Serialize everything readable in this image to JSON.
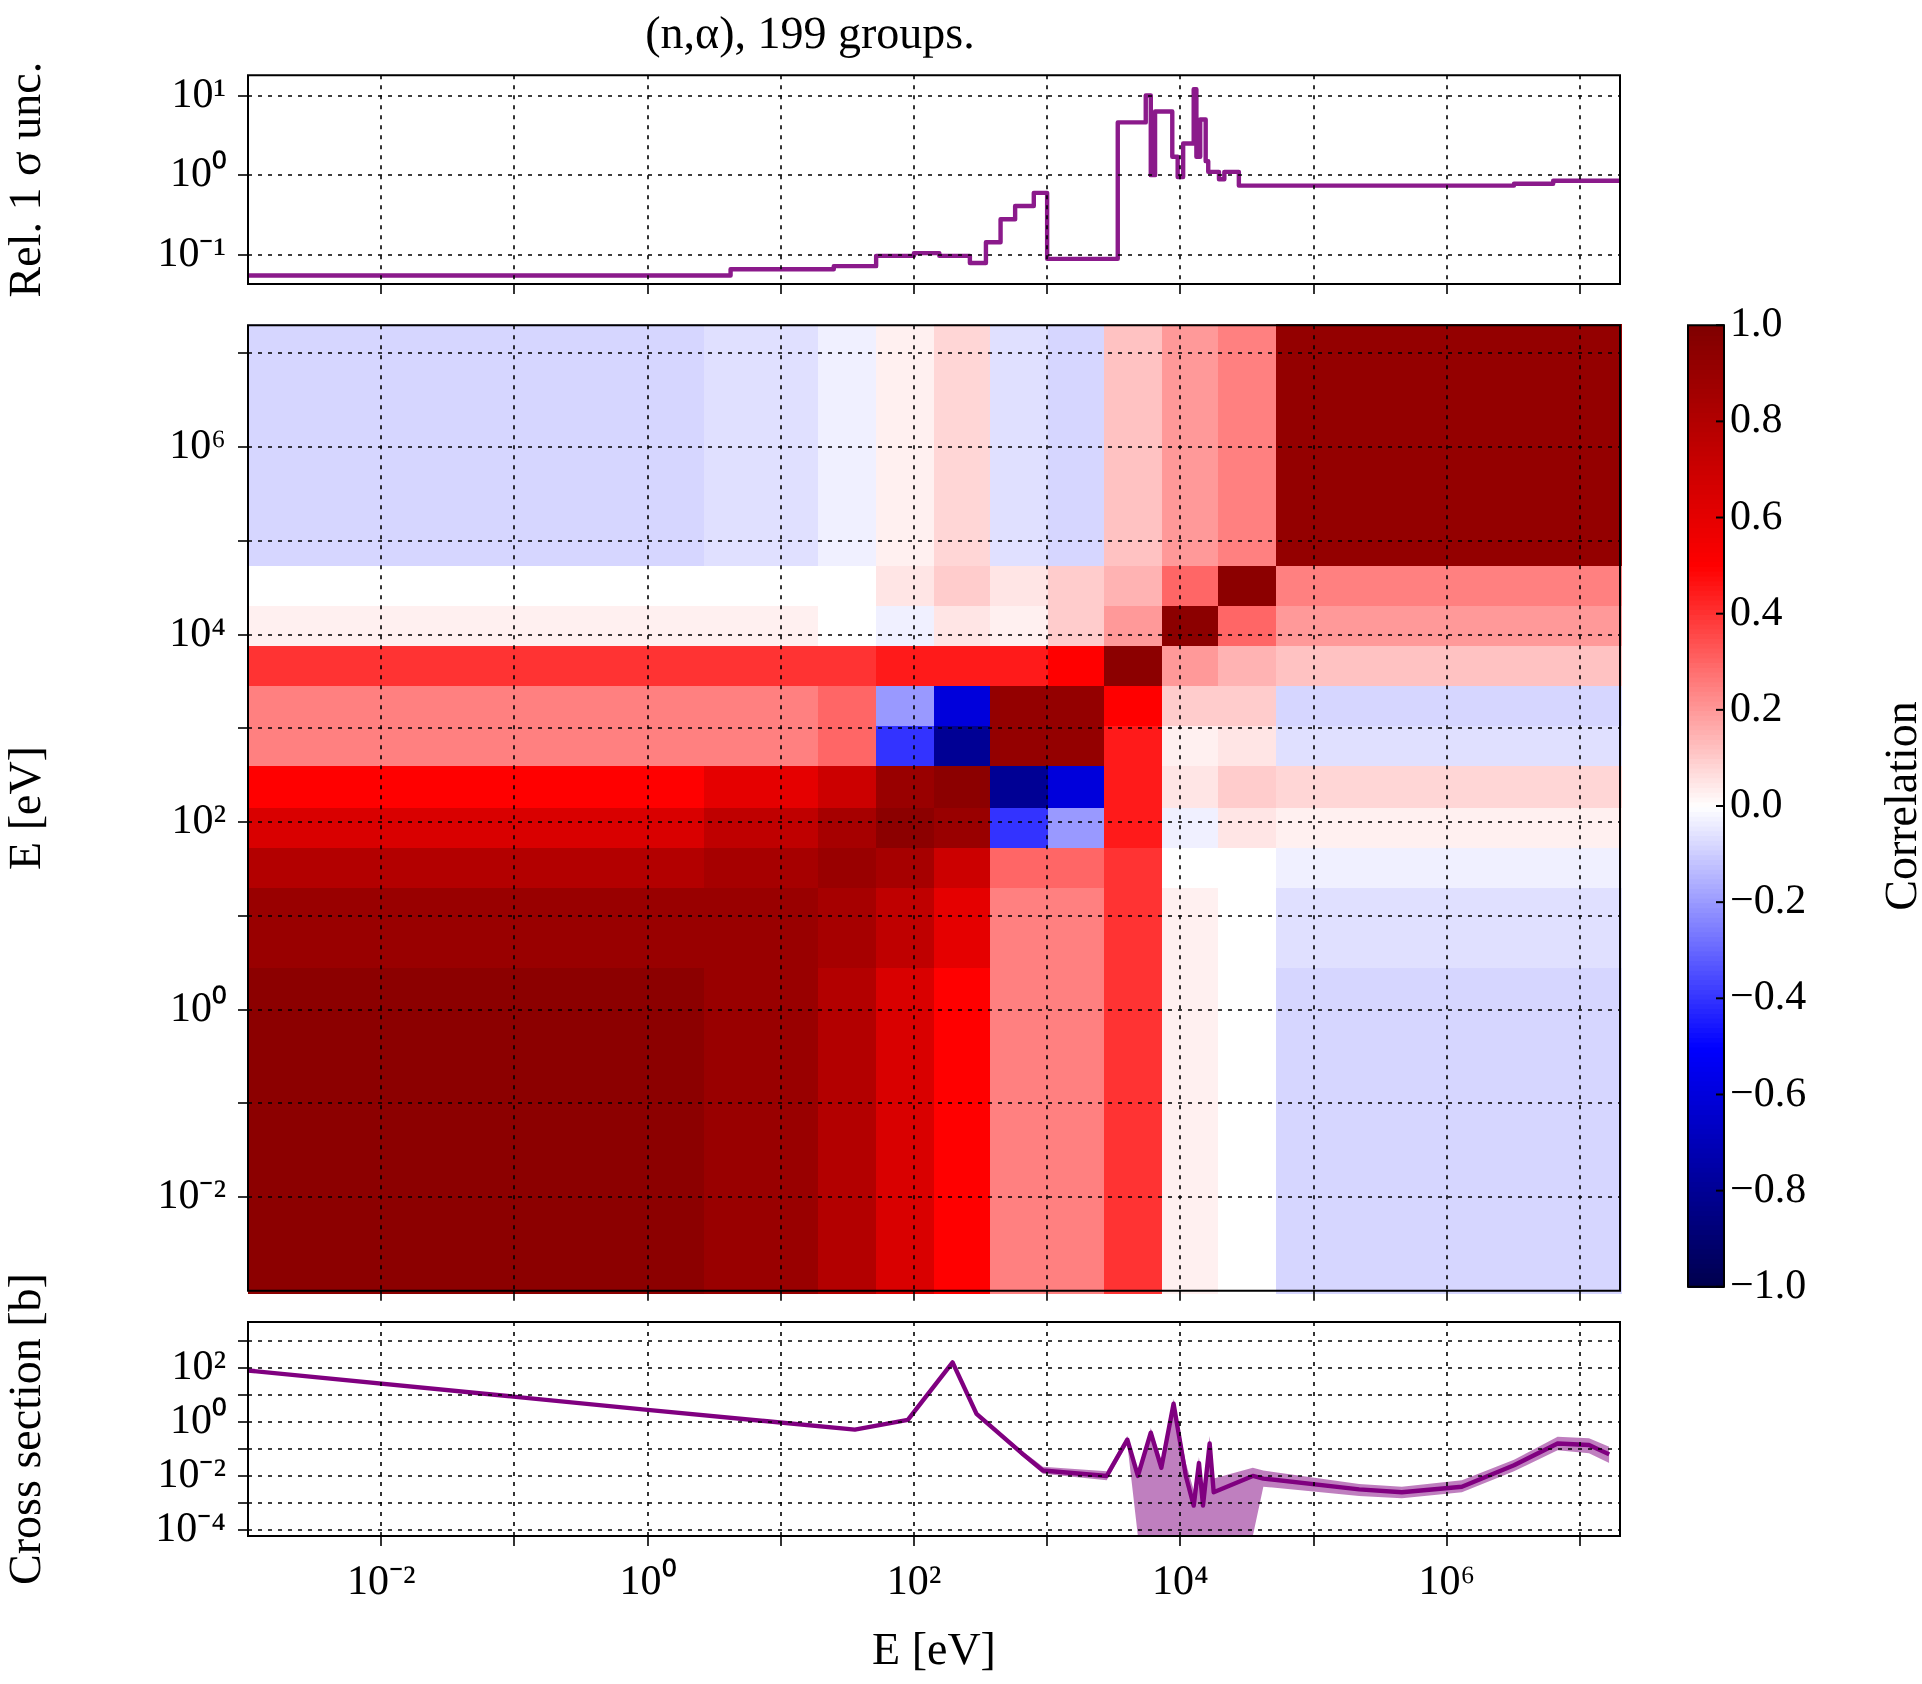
{
  "chart_data": [
    {
      "type": "step",
      "title": "(n,α), 199 groups.",
      "ylabel": "Rel. 1 σ unc.",
      "log": "xy",
      "grid": true,
      "marker": "none",
      "tick_labels": "y",
      "xlim": [
        0.001,
        20000000
      ],
      "ylim": [
        0.043,
        18
      ],
      "xticks": [
        {
          "value": 0.01,
          "label": null
        },
        {
          "value": 0.1,
          "label": null
        },
        {
          "value": 1,
          "label": null
        },
        {
          "value": 10,
          "label": null
        },
        {
          "value": 100,
          "label": null
        },
        {
          "value": 1000,
          "label": null
        },
        {
          "value": 10000,
          "label": null
        },
        {
          "value": 100000,
          "label": null
        },
        {
          "value": 1000000,
          "label": null
        },
        {
          "value": 10000000,
          "label": null
        }
      ],
      "yticks": [
        {
          "value": 0.1,
          "label": "10⁻¹"
        },
        {
          "value": 1,
          "label": "10⁰"
        },
        {
          "value": 10,
          "label": "10¹"
        }
      ],
      "series": [
        {
          "color": "#8b1a8b",
          "x": [
            0.001,
            4.2,
            25,
            52,
            100,
            155,
            263,
            347,
            447,
            575,
            794,
            1000,
            3390,
            5500,
            6000,
            6460,
            8700,
            9550,
            10500,
            12600,
            13200,
            14100,
            15500,
            16200,
            19500,
            21400,
            27500,
            36300,
            3200000,
            6300000,
            20000000
          ],
          "values": [
            0.055,
            0.055,
            0.066,
            0.072,
            0.097,
            0.105,
            0.097,
            0.079,
            0.144,
            0.28,
            0.41,
            0.6,
            0.089,
            4.6,
            10,
            1.0,
            6.3,
            1.7,
            0.95,
            2.5,
            12,
            1.7,
            5,
            1.5,
            1.1,
            0.89,
            1.1,
            0.74,
            0.74,
            0.78,
            0.85
          ]
        }
      ]
    },
    {
      "type": "heatmap",
      "ylabel": "E [eV]",
      "clabel": "Correlation",
      "log": "xy",
      "grid": true,
      "tick_labels": "y",
      "xlim": [
        0.001,
        20000000
      ],
      "ylim": [
        0.001,
        20000000
      ],
      "xticks": [
        {
          "value": 0.01,
          "label": null
        },
        {
          "value": 0.1,
          "label": null
        },
        {
          "value": 1,
          "label": null
        },
        {
          "value": 10,
          "label": null
        },
        {
          "value": 100,
          "label": null
        },
        {
          "value": 1000,
          "label": null
        },
        {
          "value": 10000,
          "label": null
        },
        {
          "value": 100000,
          "label": null
        },
        {
          "value": 1000000,
          "label": null
        },
        {
          "value": 10000000,
          "label": null
        }
      ],
      "yticks": [
        {
          "value": 0.01,
          "label": "10⁻²"
        },
        {
          "value": 0.1,
          "label": null
        },
        {
          "value": 1,
          "label": "10⁰"
        },
        {
          "value": 10,
          "label": null
        },
        {
          "value": 100,
          "label": "10²"
        },
        {
          "value": 1000,
          "label": null
        },
        {
          "value": 10000,
          "label": "10⁴"
        },
        {
          "value": 100000,
          "label": null
        },
        {
          "value": 1000000,
          "label": "10⁶"
        },
        {
          "value": 10000000,
          "label": null
        }
      ],
      "clim": [
        -1,
        1
      ],
      "cticks": [
        {
          "value": -1,
          "label": "−1.0"
        },
        {
          "value": -0.8,
          "label": "−0.8"
        },
        {
          "value": -0.6,
          "label": "−0.6"
        },
        {
          "value": -0.4,
          "label": "−0.4"
        },
        {
          "value": -0.2,
          "label": "−0.2"
        },
        {
          "value": 0,
          "label": "0.0"
        },
        {
          "value": 0.2,
          "label": "0.2"
        },
        {
          "value": 0.4,
          "label": "0.4"
        },
        {
          "value": 0.6,
          "label": "0.6"
        },
        {
          "value": 0.8,
          "label": "0.8"
        },
        {
          "value": 1,
          "label": "1.0"
        }
      ],
      "cells": [
        [
          -0.08,
          -0.08,
          -0.08,
          -0.08,
          -0.08,
          -0.08,
          -0.08,
          -0.08,
          -0.06,
          -0.06,
          -0.03,
          0.03,
          0.08,
          -0.06,
          -0.08,
          0.12,
          0.2,
          0.25,
          0.92,
          0.92,
          0.92,
          0.92,
          0.92,
          0.92
        ],
        [
          -0.08,
          -0.08,
          -0.08,
          -0.08,
          -0.08,
          -0.08,
          -0.08,
          -0.08,
          -0.06,
          -0.06,
          -0.03,
          0.03,
          0.08,
          -0.06,
          -0.08,
          0.12,
          0.2,
          0.25,
          0.92,
          0.92,
          0.92,
          0.92,
          0.92,
          0.92
        ],
        [
          -0.08,
          -0.08,
          -0.08,
          -0.08,
          -0.08,
          -0.08,
          -0.08,
          -0.08,
          -0.06,
          -0.06,
          -0.03,
          0.03,
          0.08,
          -0.06,
          -0.08,
          0.12,
          0.2,
          0.25,
          0.92,
          0.92,
          0.92,
          0.92,
          0.92,
          0.92
        ],
        [
          -0.08,
          -0.08,
          -0.08,
          -0.08,
          -0.08,
          -0.08,
          -0.08,
          -0.08,
          -0.06,
          -0.06,
          -0.03,
          0.03,
          0.08,
          -0.06,
          -0.08,
          0.12,
          0.2,
          0.25,
          0.92,
          0.92,
          0.92,
          0.92,
          0.92,
          0.92
        ],
        [
          -0.08,
          -0.08,
          -0.08,
          -0.08,
          -0.08,
          -0.08,
          -0.08,
          -0.08,
          -0.06,
          -0.06,
          -0.03,
          0.03,
          0.08,
          -0.06,
          -0.08,
          0.12,
          0.2,
          0.25,
          0.92,
          0.92,
          0.92,
          0.92,
          0.92,
          0.92
        ],
        [
          -0.08,
          -0.08,
          -0.08,
          -0.08,
          -0.08,
          -0.08,
          -0.08,
          -0.08,
          -0.06,
          -0.06,
          -0.03,
          0.03,
          0.08,
          -0.06,
          -0.08,
          0.12,
          0.2,
          0.25,
          0.92,
          0.92,
          0.92,
          0.92,
          0.92,
          0.92
        ],
        [
          0,
          0,
          0,
          0,
          0,
          0,
          0,
          0,
          0,
          0,
          0,
          0.05,
          0.1,
          0.05,
          0.1,
          0.15,
          0.3,
          0.95,
          0.25,
          0.25,
          0.25,
          0.25,
          0.25,
          0.25
        ],
        [
          0.03,
          0.03,
          0.03,
          0.03,
          0.03,
          0.03,
          0.03,
          0.03,
          0.03,
          0.03,
          0,
          -0.03,
          0.05,
          0.03,
          0.1,
          0.2,
          0.95,
          0.3,
          0.2,
          0.2,
          0.2,
          0.2,
          0.2,
          0.2
        ],
        [
          0.4,
          0.4,
          0.4,
          0.4,
          0.4,
          0.4,
          0.4,
          0.4,
          0.4,
          0.4,
          0.4,
          0.45,
          0.45,
          0.45,
          0.5,
          0.95,
          0.2,
          0.15,
          0.12,
          0.12,
          0.12,
          0.12,
          0.12,
          0.12
        ],
        [
          0.25,
          0.25,
          0.25,
          0.25,
          0.25,
          0.25,
          0.25,
          0.25,
          0.25,
          0.25,
          0.3,
          -0.2,
          -0.6,
          0.92,
          0.92,
          0.5,
          0.1,
          0.1,
          -0.08,
          -0.08,
          -0.08,
          -0.08,
          -0.08,
          -0.08
        ],
        [
          0.25,
          0.25,
          0.25,
          0.25,
          0.25,
          0.25,
          0.25,
          0.25,
          0.25,
          0.25,
          0.3,
          -0.4,
          -0.8,
          0.92,
          0.92,
          0.45,
          0.03,
          0.05,
          -0.06,
          -0.06,
          -0.06,
          -0.06,
          -0.06,
          -0.06
        ],
        [
          0.5,
          0.5,
          0.5,
          0.5,
          0.5,
          0.5,
          0.5,
          0.5,
          0.6,
          0.6,
          0.7,
          0.9,
          0.95,
          -0.8,
          -0.6,
          0.45,
          0.05,
          0.1,
          0.08,
          0.08,
          0.08,
          0.08,
          0.08,
          0.08
        ],
        [
          0.65,
          0.65,
          0.65,
          0.65,
          0.65,
          0.65,
          0.65,
          0.65,
          0.75,
          0.75,
          0.85,
          0.95,
          0.9,
          -0.4,
          -0.2,
          0.45,
          -0.03,
          0.05,
          0.03,
          0.03,
          0.03,
          0.03,
          0.03,
          0.03
        ],
        [
          0.8,
          0.8,
          0.8,
          0.8,
          0.8,
          0.8,
          0.8,
          0.8,
          0.85,
          0.85,
          0.9,
          0.85,
          0.7,
          0.3,
          0.3,
          0.4,
          0,
          0,
          -0.03,
          -0.03,
          -0.03,
          -0.03,
          -0.03,
          -0.03
        ],
        [
          0.9,
          0.9,
          0.9,
          0.9,
          0.9,
          0.9,
          0.9,
          0.9,
          0.9,
          0.9,
          0.85,
          0.75,
          0.6,
          0.25,
          0.25,
          0.4,
          0.03,
          0,
          -0.06,
          -0.06,
          -0.06,
          -0.06,
          -0.06,
          -0.06
        ],
        [
          0.9,
          0.9,
          0.9,
          0.9,
          0.9,
          0.9,
          0.9,
          0.9,
          0.9,
          0.9,
          0.85,
          0.75,
          0.6,
          0.25,
          0.25,
          0.4,
          0.03,
          0,
          -0.06,
          -0.06,
          -0.06,
          -0.06,
          -0.06,
          -0.06
        ],
        [
          0.95,
          0.95,
          0.95,
          0.95,
          0.95,
          0.95,
          0.95,
          0.95,
          0.9,
          0.9,
          0.8,
          0.65,
          0.5,
          0.25,
          0.25,
          0.4,
          0.03,
          0,
          -0.08,
          -0.08,
          -0.08,
          -0.08,
          -0.08,
          -0.08
        ],
        [
          0.95,
          0.95,
          0.95,
          0.95,
          0.95,
          0.95,
          0.95,
          0.95,
          0.9,
          0.9,
          0.8,
          0.65,
          0.5,
          0.25,
          0.25,
          0.4,
          0.03,
          0,
          -0.08,
          -0.08,
          -0.08,
          -0.08,
          -0.08,
          -0.08
        ],
        [
          0.95,
          0.95,
          0.95,
          0.95,
          0.95,
          0.95,
          0.95,
          0.95,
          0.9,
          0.9,
          0.8,
          0.65,
          0.5,
          0.25,
          0.25,
          0.4,
          0.03,
          0,
          -0.08,
          -0.08,
          -0.08,
          -0.08,
          -0.08,
          -0.08
        ],
        [
          0.95,
          0.95,
          0.95,
          0.95,
          0.95,
          0.95,
          0.95,
          0.95,
          0.9,
          0.9,
          0.8,
          0.65,
          0.5,
          0.25,
          0.25,
          0.4,
          0.03,
          0,
          -0.08,
          -0.08,
          -0.08,
          -0.08,
          -0.08,
          -0.08
        ],
        [
          0.95,
          0.95,
          0.95,
          0.95,
          0.95,
          0.95,
          0.95,
          0.95,
          0.9,
          0.9,
          0.8,
          0.65,
          0.5,
          0.25,
          0.25,
          0.4,
          0.03,
          0,
          -0.08,
          -0.08,
          -0.08,
          -0.08,
          -0.08,
          -0.08
        ],
        [
          0.95,
          0.95,
          0.95,
          0.95,
          0.95,
          0.95,
          0.95,
          0.95,
          0.9,
          0.9,
          0.8,
          0.65,
          0.5,
          0.25,
          0.25,
          0.4,
          0.03,
          0,
          -0.08,
          -0.08,
          -0.08,
          -0.08,
          -0.08,
          -0.08
        ],
        [
          0.95,
          0.95,
          0.95,
          0.95,
          0.95,
          0.95,
          0.95,
          0.95,
          0.9,
          0.9,
          0.8,
          0.65,
          0.5,
          0.25,
          0.25,
          0.4,
          0.03,
          0,
          -0.08,
          -0.08,
          -0.08,
          -0.08,
          -0.08,
          -0.08
        ],
        [
          0.95,
          0.95,
          0.95,
          0.95,
          0.95,
          0.95,
          0.95,
          0.95,
          0.9,
          0.9,
          0.8,
          0.65,
          0.5,
          0.25,
          0.25,
          0.4,
          0.03,
          0,
          -0.08,
          -0.08,
          -0.08,
          -0.08,
          -0.08,
          -0.08
        ]
      ]
    },
    {
      "type": "line",
      "xlabel": "E [eV]",
      "ylabel": "Cross section [b]",
      "log": "xy",
      "grid": true,
      "marker": "none",
      "xlim": [
        0.001,
        20000000
      ],
      "ylim": [
        6e-05,
        5000
      ],
      "xticks": [
        {
          "value": 0.01,
          "label": "10⁻²"
        },
        {
          "value": 0.1,
          "label": null
        },
        {
          "value": 1,
          "label": "10⁰"
        },
        {
          "value": 10,
          "label": null
        },
        {
          "value": 100,
          "label": "10²"
        },
        {
          "value": 1000,
          "label": null
        },
        {
          "value": 10000,
          "label": "10⁴"
        },
        {
          "value": 100000,
          "label": null
        },
        {
          "value": 1000000,
          "label": "10⁶"
        },
        {
          "value": 10000000,
          "label": null
        }
      ],
      "yticks": [
        {
          "value": 0.0001,
          "label": "10⁻⁴"
        },
        {
          "value": 0.001,
          "label": null
        },
        {
          "value": 0.01,
          "label": "10⁻²"
        },
        {
          "value": 0.1,
          "label": null
        },
        {
          "value": 1,
          "label": "10⁰"
        },
        {
          "value": 10,
          "label": null
        },
        {
          "value": 100,
          "label": "10²"
        },
        {
          "value": 1000,
          "label": null
        }
      ],
      "series": [
        {
          "color": "#800080",
          "x": [
            0.001,
            1,
            36,
            90,
            195,
            295,
            660,
            930,
            2800,
            4000,
            4800,
            6000,
            7200,
            8900,
            11000,
            12600,
            13800,
            14800,
            16600,
            17800,
            35000,
            42000,
            220000,
            460000,
            1300000,
            3200000,
            6800000,
            11700000,
            16600000
          ],
          "values": [
            80,
            2.8,
            0.52,
            1.2,
            160,
            2,
            0.063,
            0.016,
            0.01,
            0.22,
            0.01,
            0.4,
            0.02,
            4.7,
            0.01,
            0.0008,
            0.03,
            0.0008,
            0.16,
            0.0025,
            0.01,
            0.008,
            0.0032,
            0.0025,
            0.004,
            0.025,
            0.16,
            0.14,
            0.063
          ],
          "lower": [
            80,
            2.8,
            0.52,
            1.2,
            160,
            2,
            0.05,
            0.012,
            0.007,
            0.15,
            6e-05,
            6e-05,
            6e-05,
            6e-05,
            6e-05,
            6e-05,
            6e-05,
            6e-05,
            6e-05,
            6e-05,
            6e-05,
            0.004,
            0.0018,
            0.0015,
            0.0025,
            0.015,
            0.09,
            0.07,
            0.03
          ],
          "upper": [
            80,
            2.8,
            0.52,
            1.2,
            160,
            2,
            0.08,
            0.022,
            0.015,
            0.3,
            0.015,
            0.6,
            0.04,
            7,
            0.03,
            0.003,
            0.05,
            0.003,
            0.3,
            0.008,
            0.02,
            0.016,
            0.005,
            0.004,
            0.007,
            0.04,
            0.28,
            0.25,
            0.12
          ]
        }
      ]
    }
  ]
}
